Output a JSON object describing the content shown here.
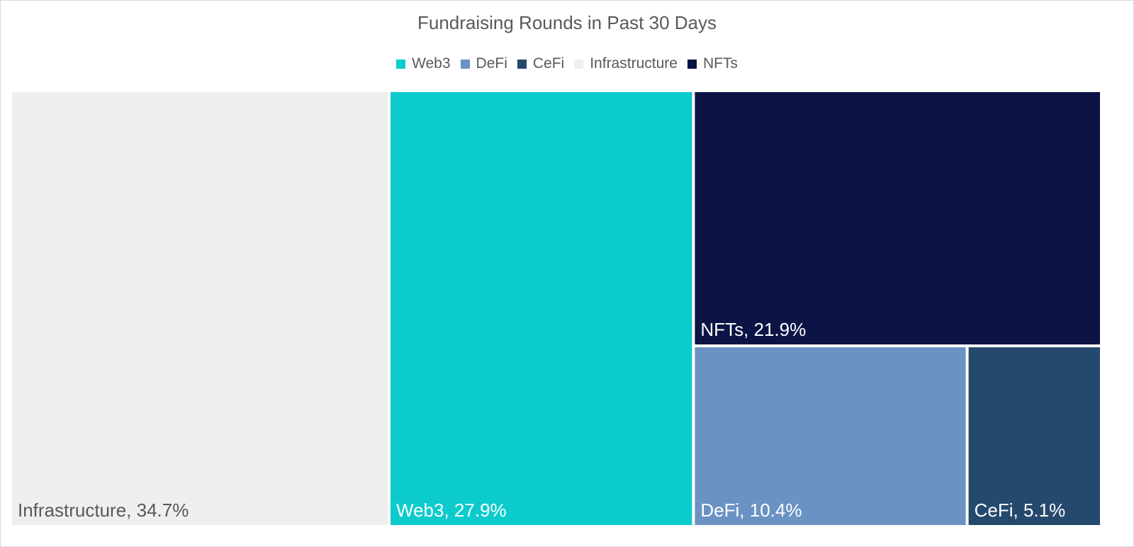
{
  "chart_data": {
    "type": "treemap",
    "title": "Fundraising Rounds in Past 30 Days",
    "legend": {
      "placement": "top",
      "entries": [
        "Web3",
        "DeFi",
        "CeFi",
        "Infrastructure",
        "NFTs"
      ]
    },
    "series": [
      {
        "name": "Infrastructure",
        "value": 34.7,
        "label": "Infrastructure, 34.7%",
        "color": "#efefef",
        "label_color": "#595959"
      },
      {
        "name": "Web3",
        "value": 27.9,
        "label": "Web3, 27.9%",
        "color": "#0ccbcd",
        "label_color": "#ffffff"
      },
      {
        "name": "NFTs",
        "value": 21.9,
        "label": "NFTs, 21.9%",
        "color": "#0c1445",
        "label_color": "#ffffff"
      },
      {
        "name": "DeFi",
        "value": 10.4,
        "label": "DeFi, 10.4%",
        "color": "#6a93c4",
        "label_color": "#ffffff"
      },
      {
        "name": "CeFi",
        "value": 5.1,
        "label": "CeFi, 5.1%",
        "color": "#25496d",
        "label_color": "#ffffff"
      }
    ]
  }
}
